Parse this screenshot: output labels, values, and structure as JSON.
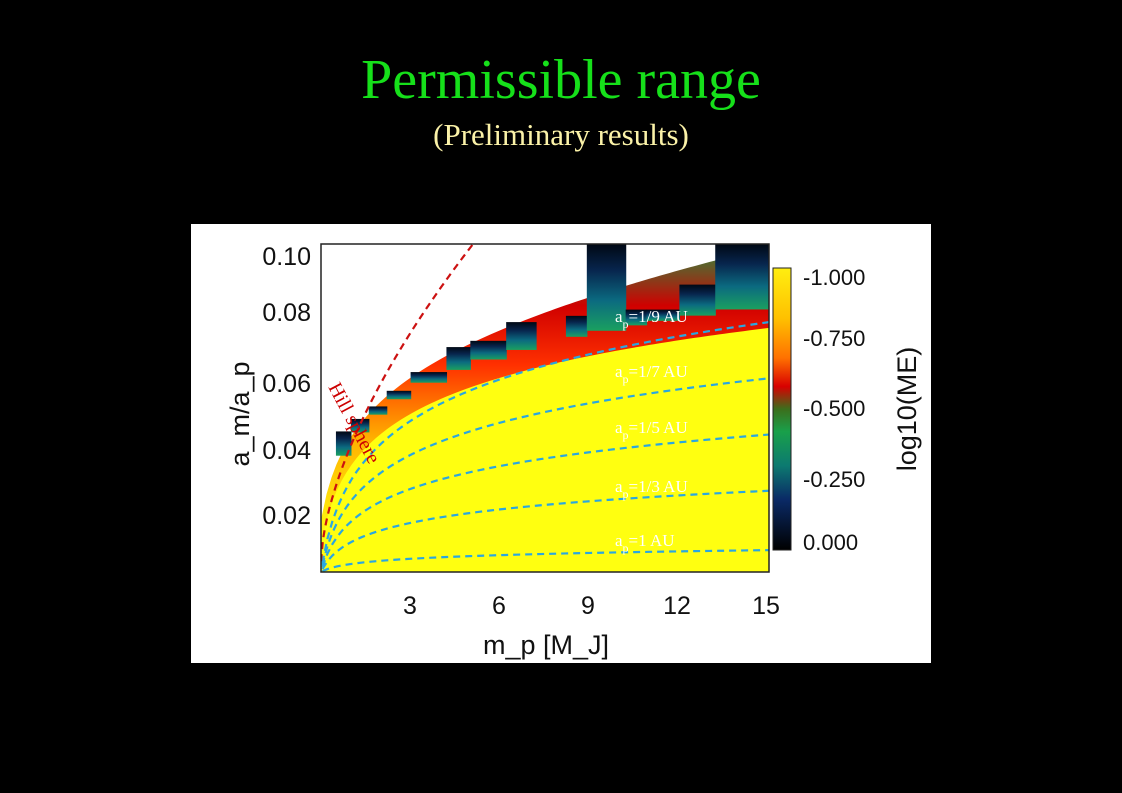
{
  "slide": {
    "title": "Permissible range",
    "subtitle": "(Preliminary results)"
  },
  "chart_data": {
    "type": "heatmap",
    "xlabel": "m_p [M_J]",
    "ylabel": "a_m/a_p",
    "xlim": [
      0,
      15
    ],
    "ylim": [
      0,
      0.105
    ],
    "x_ticks": [
      "3",
      "6",
      "9",
      "12",
      "15"
    ],
    "y_ticks": [
      "0.10",
      "0.08",
      "0.06",
      "0.04",
      "0.02"
    ],
    "colorbar": {
      "label": "log10(ME)",
      "ticks": [
        "-1.000",
        "-0.750",
        "-0.500",
        "-0.250",
        "0.000"
      ],
      "range": [
        -1.0,
        0.0
      ]
    },
    "curves": [
      {
        "name": "a_p=1/9 AU",
        "ap": 0.1111,
        "color": "#2aa7e0"
      },
      {
        "name": "a_p=1/7 AU",
        "ap": 0.1429,
        "color": "#2aa7e0"
      },
      {
        "name": "a_p=1/5 AU",
        "ap": 0.2,
        "color": "#2aa7e0"
      },
      {
        "name": "a_p=1/3 AU",
        "ap": 0.3333,
        "color": "#2aa7e0"
      },
      {
        "name": "a_p=1 AU",
        "ap": 1.0,
        "color": "#2aa7e0"
      }
    ],
    "curve_labels": [
      {
        "pre": "a",
        "sub": "p",
        "post": "=1/9 AU"
      },
      {
        "pre": "a",
        "sub": "p",
        "post": "=1/7 AU"
      },
      {
        "pre": "a",
        "sub": "p",
        "post": "=1/5 AU"
      },
      {
        "pre": "a",
        "sub": "p",
        "post": "=1/3 AU"
      },
      {
        "pre": "a",
        "sub": "p",
        "post": "=1 AU"
      }
    ],
    "hill_sphere": {
      "label": "Hill sphere",
      "color": "#cc1111"
    },
    "curve_endpoints_y": [
      0.08,
      0.062,
      0.044,
      0.026,
      0.007
    ]
  }
}
